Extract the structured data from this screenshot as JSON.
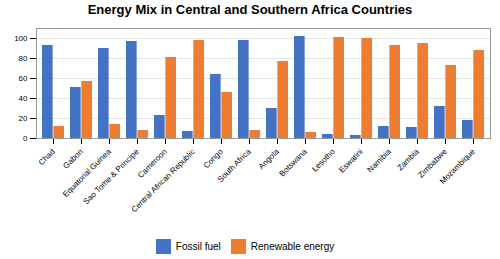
{
  "chart_data": {
    "type": "bar",
    "title": "Energy Mix in Central and Southern Africa Countries",
    "categories": [
      "Chad",
      "Gabon",
      "Equatorial Guinea",
      "Sao Tome & Principe",
      "Cameroon",
      "Central African Republic",
      "Congo",
      "South Africa",
      "Angola",
      "Botswana",
      "Lesotho",
      "Eswatini",
      "Namibia",
      "Zambia",
      "Zimbabwe",
      "Mozambique"
    ],
    "series": [
      {
        "name": "Fossil fuel",
        "color": "#4472C4",
        "values": [
          93,
          51,
          90,
          97,
          23,
          7,
          64,
          98,
          30,
          102,
          4,
          3,
          12,
          11,
          32,
          18
        ]
      },
      {
        "name": "Renewable energy",
        "color": "#ED7D31",
        "values": [
          12,
          57,
          14,
          8,
          81,
          98,
          46,
          8,
          77,
          6,
          101,
          100,
          93,
          95,
          73,
          88
        ]
      }
    ],
    "ylim": [
      0,
      110
    ],
    "yticks": [
      0,
      20,
      40,
      60,
      80,
      100
    ],
    "grid": true,
    "legend": "bottom"
  }
}
